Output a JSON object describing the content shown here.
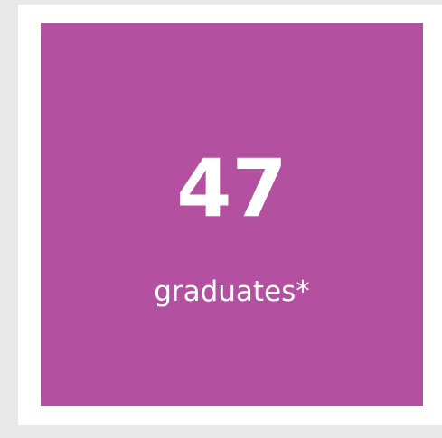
{
  "stat": {
    "value": 47,
    "label": "graduates*"
  }
}
